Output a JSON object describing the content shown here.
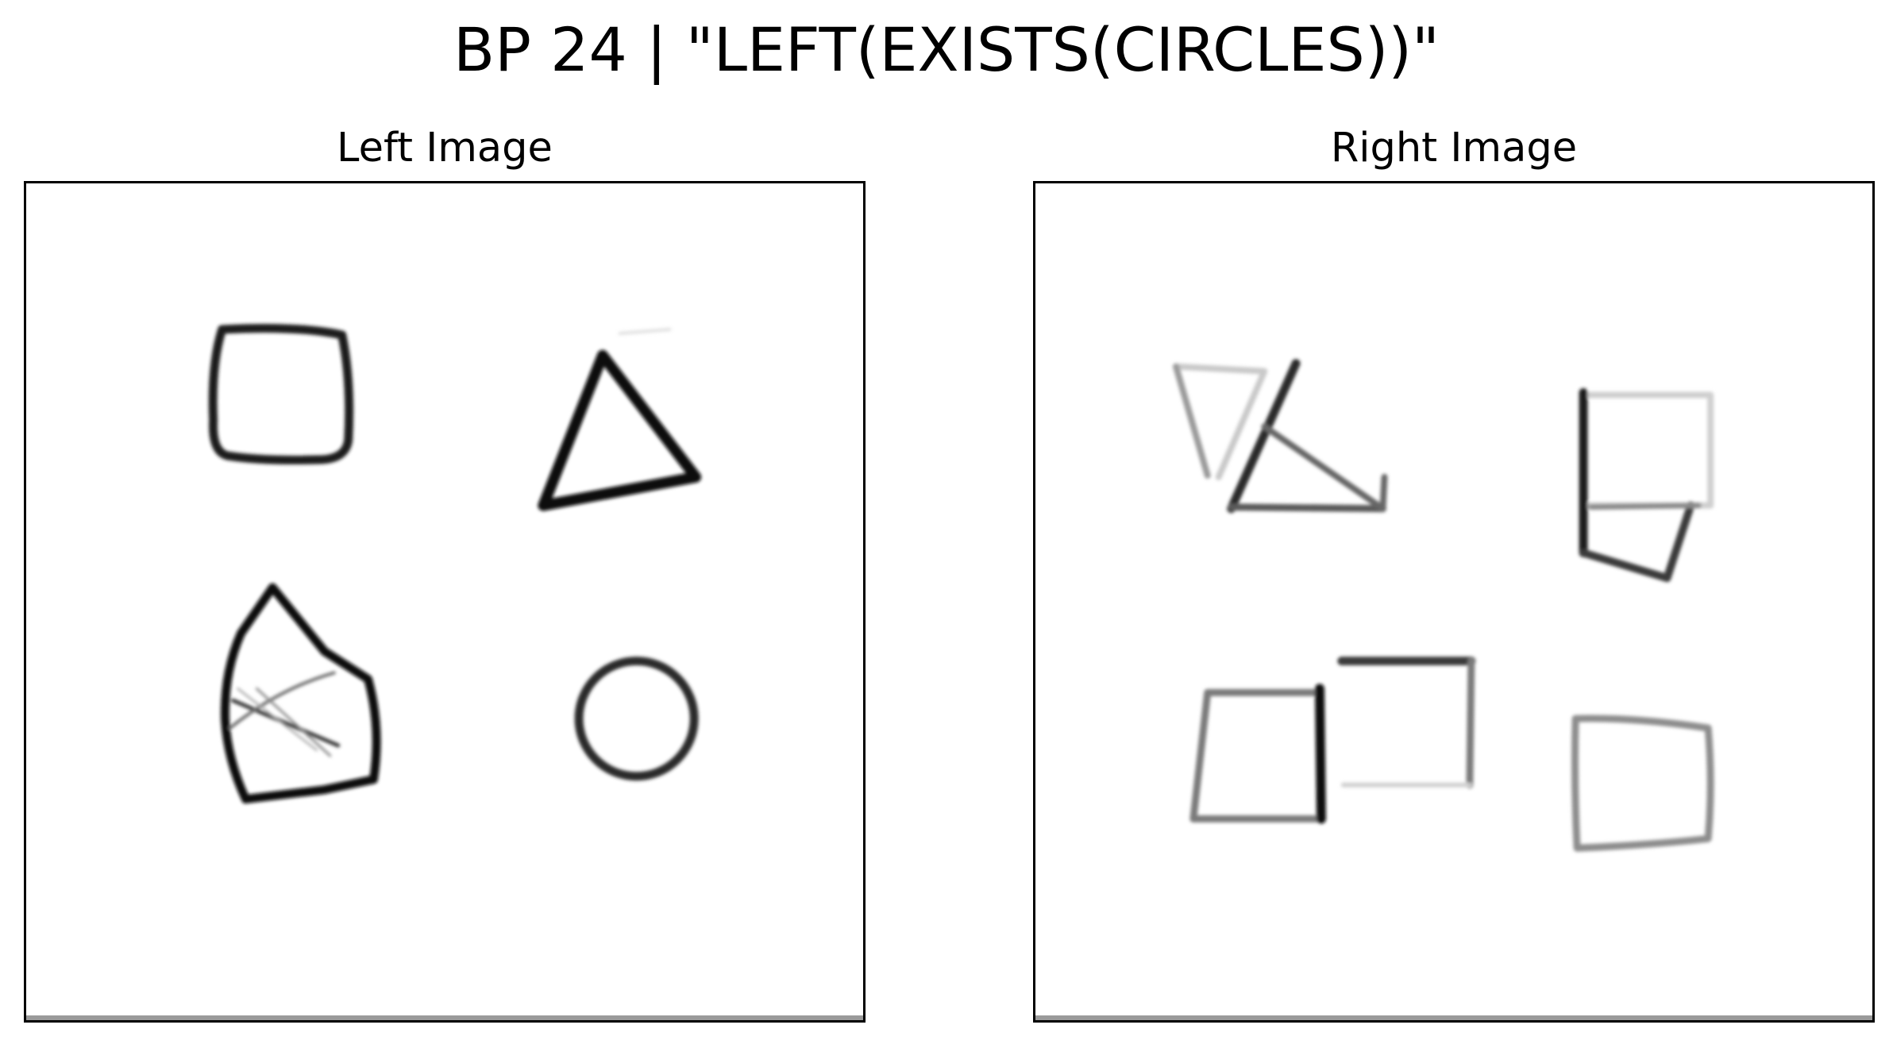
{
  "title": "BP 24 | \"LEFT(EXISTS(CIRCLES))\"",
  "left_panel": {
    "title": "Left Image",
    "shapes": [
      "square-outline",
      "triangle-outline",
      "irregular-polygon-with-crossing-lines",
      "circle-outline"
    ]
  },
  "right_panel": {
    "title": "Right Image",
    "shapes": [
      "crossed-triangle-outline",
      "square-outline-with-inner-quad",
      "two-adjacent-square-outlines",
      "square-outline"
    ]
  },
  "colors": {
    "ink": "#111111",
    "frame": "#000000",
    "background": "#ffffff"
  }
}
